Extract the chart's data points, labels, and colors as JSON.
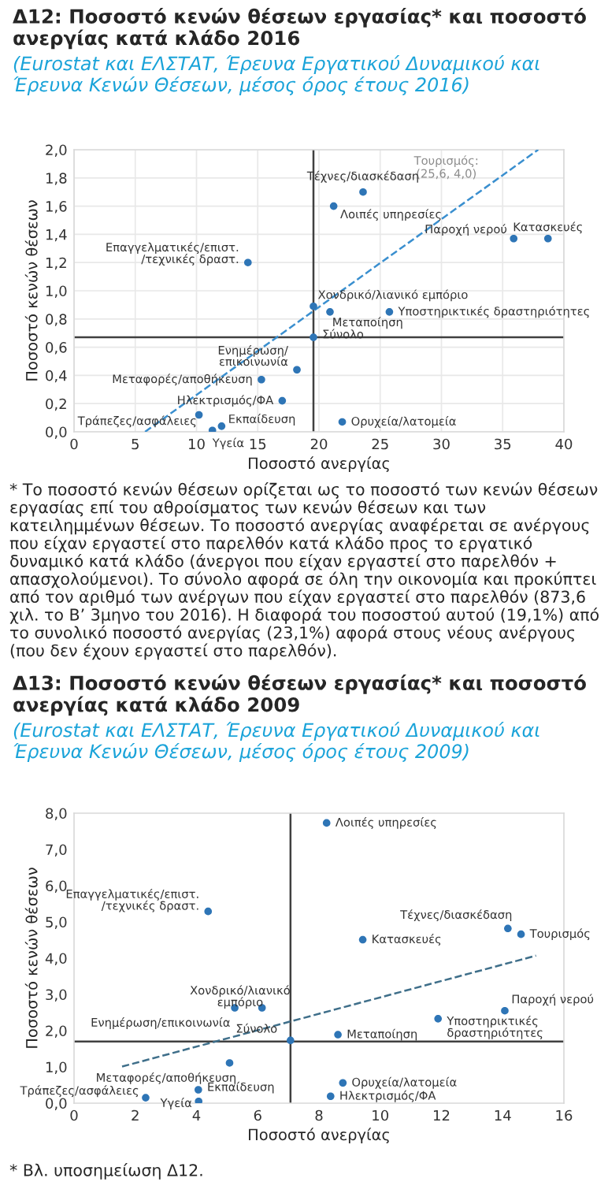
{
  "chart_data": [
    {
      "type": "scatter",
      "title": "Δ12: Ποσοστό κενών θέσεων εργασίας* και ποσοστό ανεργίας κατά κλάδο 2016",
      "subtitle": "(Eurostat και ΕΛΣΤΑΤ, Έρευνα Εργατικού Δυναμικού και Έρευνα Κενών Θέσεων, μέσος όρος έτους 2016)",
      "xlabel": "Ποσοστό ανεργίας",
      "ylabel": "Ποσοστό κενών θέσεων",
      "xlim": [
        0,
        40
      ],
      "ylim": [
        0,
        2
      ],
      "xticks": [
        0,
        5,
        10,
        15,
        20,
        25,
        30,
        35,
        40
      ],
      "yticks": [
        {
          "value": 0,
          "label": "0,0"
        },
        {
          "value": 0.2,
          "label": "0,2"
        },
        {
          "value": 0.4,
          "label": "0,4"
        },
        {
          "value": 0.6,
          "label": "0,6"
        },
        {
          "value": 0.8,
          "label": "0,8"
        },
        {
          "value": 1.0,
          "label": "1,0"
        },
        {
          "value": 1.2,
          "label": "1,2"
        },
        {
          "value": 1.4,
          "label": "1,4"
        },
        {
          "value": 1.6,
          "label": "1,6"
        },
        {
          "value": 1.8,
          "label": "1,8"
        },
        {
          "value": 2.0,
          "label": "2,0"
        }
      ],
      "grid": true,
      "series": [
        {
          "marker": "circle",
          "color": "#2e75b6",
          "x": [
            23.6,
            21.2,
            35.9,
            38.7,
            14.2,
            19.55,
            20.9,
            25.75,
            19.55,
            18.2,
            15.3,
            17.0,
            10.2,
            12.05,
            11.3,
            21.9
          ],
          "values": [
            1.7,
            1.6,
            1.37,
            1.37,
            1.2,
            0.89,
            0.85,
            0.85,
            0.67,
            0.44,
            0.37,
            0.22,
            0.12,
            0.04,
            0.01,
            0.07
          ]
        },
        {
          "type": "line",
          "marker": "none",
          "color": "#3a8fcf",
          "line_style": "dashed",
          "x": [
            5.8,
            37.9
          ],
          "values": [
            0,
            2.0
          ]
        }
      ],
      "ref_lines": [
        {
          "axis": "x",
          "value": 19.55,
          "color": "#404040"
        },
        {
          "axis": "y",
          "value": 0.67,
          "color": "#404040"
        }
      ],
      "annotations": [
        {
          "text": "Τέχνες/διασκέδαση",
          "x": 23.6,
          "y": 1.7
        },
        {
          "text": "Λοιπές υπηρεσίες",
          "x": 21.2,
          "y": 1.6
        },
        {
          "text": "Παροχή νερού",
          "x": 35.9,
          "y": 1.37
        },
        {
          "text": "Κατασκευές",
          "x": 38.7,
          "y": 1.37
        },
        {
          "text": "Επαγγελματικές/επιστ.\n/τεχνικές δραστ.",
          "x": 14.2,
          "y": 1.2
        },
        {
          "text": "Χονδρικό/λιανικό εμπόριο",
          "x": 19.55,
          "y": 0.89
        },
        {
          "text": "Μεταποίηση",
          "x": 20.9,
          "y": 0.85
        },
        {
          "text": "Υποστηρικτικές δραστηριότητες",
          "x": 25.75,
          "y": 0.85
        },
        {
          "text": "Σύνολο",
          "x": 19.55,
          "y": 0.67
        },
        {
          "text": "Ενημέρωση/\nεπικοινωνία",
          "x": 18.2,
          "y": 0.44
        },
        {
          "text": "Μεταφορές/αποθήκευση",
          "x": 15.3,
          "y": 0.37
        },
        {
          "text": "Ηλεκτρισμός/ΦΑ",
          "x": 17.0,
          "y": 0.22
        },
        {
          "text": "Τράπεζες/ασφάλειες",
          "x": 10.2,
          "y": 0.12
        },
        {
          "text": "Εκπαίδευση",
          "x": 12.05,
          "y": 0.04
        },
        {
          "text": "Υγεία",
          "x": 11.3,
          "y": 0.01
        },
        {
          "text": "Ορυχεία/λατομεία",
          "x": 21.9,
          "y": 0.07
        },
        "Τουρισμός:\n(25,6, 4,0)",
        "* Το ποσοστό κενών θέσεων ορίζεται ως το ποσοστό των κενών θέσεων εργασίας επί του αθροίσματος των κενών θέσεων και των κατειλημμένων θέσεων. Το ποσοστό ανεργίας αναφέρεται σε ανέργους που είχαν εργαστεί στο παρελθόν κατά κλάδο προς το εργατικό δυναμικό κατά κλάδο (άνεργοι που είχαν εργαστεί στο παρελθόν + απασχολούμενοι). Το σύνολο αφορά σε όλη την οικονομία και προκύπτει από τον αριθμό των ανέργων που είχαν εργαστεί στο παρελθόν (873,6 χιλ. το Β’ 3μηνο του 2016). Η διαφορά του ποσοστού αυτού (19,1%) από το συνολικό ποσοστό ανεργίας (23,1%) αφορά στους νέους ανέργους (που δεν έχουν εργαστεί στο παρελθόν)."
      ]
    },
    {
      "type": "scatter",
      "title": "Δ13: Ποσοστό κενών θέσεων εργασίας* και ποσοστό ανεργίας κατά κλάδο 2009",
      "subtitle": "(Eurostat και ΕΛΣΤΑΤ, Έρευνα Εργατικού Δυναμικού και Έρευνα Κενών Θέσεων, μέσος όρος έτους 2009)",
      "xlabel": "Ποσοστό ανεργίας",
      "ylabel": "Ποσοστό κενών θέσεων",
      "xlim": [
        0,
        16
      ],
      "ylim": [
        0,
        8
      ],
      "xticks": [
        0,
        2,
        4,
        6,
        8,
        10,
        12,
        14,
        16
      ],
      "yticks": [
        {
          "value": 0,
          "label": "0,0"
        },
        {
          "value": 1,
          "label": "1,0"
        },
        {
          "value": 2,
          "label": "2,0"
        },
        {
          "value": 3,
          "label": "3,0"
        },
        {
          "value": 4,
          "label": "4,0"
        },
        {
          "value": 5,
          "label": "5,0"
        },
        {
          "value": 6,
          "label": "6,0"
        },
        {
          "value": 7,
          "label": "7,0"
        },
        {
          "value": 8,
          "label": "8,0"
        }
      ],
      "grid": false,
      "series": [
        {
          "marker": "circle",
          "color": "#2e75b6",
          "x": [
            8.25,
            4.38,
            14.17,
            14.6,
            9.43,
            6.14,
            5.25,
            14.07,
            11.89,
            8.62,
            7.07,
            5.08,
            8.78,
            8.38,
            4.06,
            4.07,
            2.34
          ],
          "values": [
            7.73,
            5.29,
            4.82,
            4.66,
            4.51,
            2.63,
            2.63,
            2.55,
            2.33,
            1.89,
            1.73,
            1.11,
            0.56,
            0.19,
            0.37,
            0.05,
            0.15
          ]
        },
        {
          "type": "line",
          "marker": "none",
          "color": "#3f6f8a",
          "line_style": "dashed",
          "x": [
            1.57,
            15.09
          ],
          "values": [
            1.01,
            4.07
          ]
        }
      ],
      "ref_lines": [
        {
          "axis": "x",
          "value": 7.07,
          "color": "#404040"
        },
        {
          "axis": "y",
          "value": 1.7,
          "color": "#404040"
        }
      ],
      "annotations": [
        {
          "text": "Λοιπές υπηρεσίες",
          "x": 8.25,
          "y": 7.73
        },
        {
          "text": "Επαγγελματικές/επιστ.\n/τεχνικές δραστ.",
          "x": 4.38,
          "y": 5.29
        },
        {
          "text": "Τέχνες/διασκέδαση",
          "x": 14.17,
          "y": 4.82
        },
        {
          "text": "Τουρισμός",
          "x": 14.6,
          "y": 4.66
        },
        {
          "text": "Κατασκευές",
          "x": 9.43,
          "y": 4.51
        },
        {
          "text": "Χονδρικό/λιανικό\nεμπόριο",
          "x": 6.14,
          "y": 2.63
        },
        {
          "text": "Ενημέρωση/επικοινωνία",
          "x": 5.25,
          "y": 2.63
        },
        {
          "text": "Παροχή νερού",
          "x": 14.07,
          "y": 2.55
        },
        {
          "text": "Υποστηρικτικές\nδραστηριότητες",
          "x": 11.89,
          "y": 2.33
        },
        {
          "text": "Μεταποίηση",
          "x": 8.62,
          "y": 1.89
        },
        {
          "text": "Σύνολο",
          "x": 7.07,
          "y": 1.73
        },
        {
          "text": "Μεταφορές/αποθήκευση",
          "x": 5.08,
          "y": 1.11
        },
        {
          "text": "Ορυχεία/λατομεία",
          "x": 8.78,
          "y": 0.56
        },
        {
          "text": "Ηλεκτρισμός/ΦΑ",
          "x": 8.38,
          "y": 0.19
        },
        {
          "text": "Εκπαίδευση",
          "x": 4.06,
          "y": 0.37
        },
        {
          "text": "Υγεία",
          "x": 4.07,
          "y": 0.05
        },
        {
          "text": "Τράπεζες/ασφάλειες",
          "x": 2.34,
          "y": 0.15
        },
        "* Βλ. υποσημείωση Δ12."
      ]
    }
  ]
}
